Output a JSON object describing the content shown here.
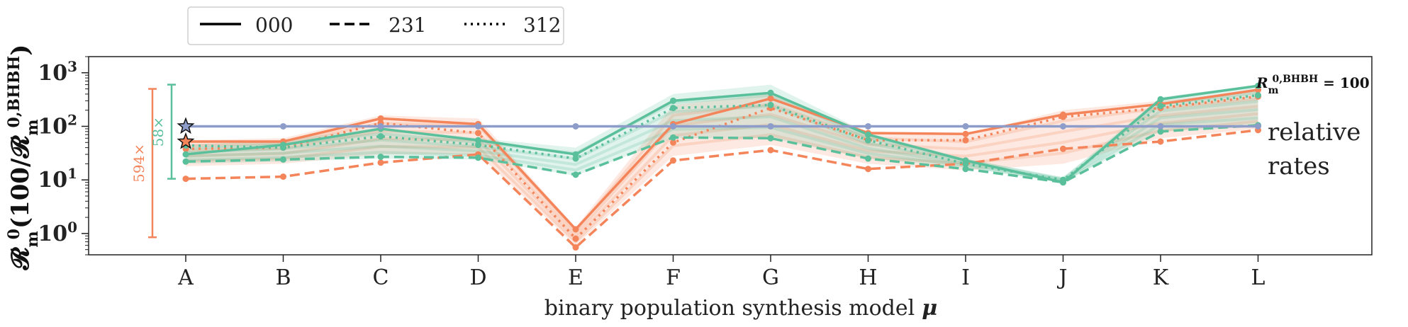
{
  "chart_data": {
    "type": "line",
    "xlabel_text": "binary population synthesis model",
    "xlabel_symbol": "μ",
    "ylabel_main": "𝓡",
    "ylabel_sub": "m",
    "ylabel_sup": "0",
    "ylabel_paren_open": "(100/",
    "ylabel_den": "𝓡",
    "ylabel_den_sub": "m",
    "ylabel_den_sup": "0,BHBH",
    "ylabel_paren_close": ")",
    "yscale": "log",
    "ylim": [
      0.4,
      2000
    ],
    "categories": [
      "A",
      "B",
      "C",
      "D",
      "E",
      "F",
      "G",
      "H",
      "I",
      "J",
      "K",
      "L"
    ],
    "yticks": [
      {
        "value": 1,
        "base": "10",
        "exp": "0"
      },
      {
        "value": 10,
        "base": "10",
        "exp": "1"
      },
      {
        "value": 100,
        "base": "10",
        "exp": "2"
      },
      {
        "value": 1000,
        "base": "10",
        "exp": "3"
      }
    ],
    "legend": [
      {
        "label": "000",
        "style": "solid"
      },
      {
        "label": "231",
        "style": "dashed"
      },
      {
        "label": "312",
        "style": "dotted"
      }
    ],
    "colors": {
      "orange": "#f4845a",
      "green": "#5abf9b",
      "blue": "#8d9cc9"
    },
    "series": [
      {
        "color": "orange",
        "style": "solid",
        "values": [
          52,
          52,
          140,
          110,
          1.2,
          110,
          330,
          75,
          72,
          165,
          260,
          480
        ]
      },
      {
        "color": "orange",
        "style": "dashed",
        "values": [
          10.5,
          11.5,
          21,
          30,
          0.55,
          23,
          36,
          16,
          20,
          38,
          52,
          85
        ]
      },
      {
        "color": "orange",
        "style": "dotted",
        "values": [
          38,
          40,
          115,
          75,
          0.8,
          50,
          220,
          55,
          55,
          150,
          220,
          360
        ]
      },
      {
        "color": "green",
        "style": "solid",
        "values": [
          30,
          45,
          90,
          55,
          30,
          300,
          420,
          70,
          23,
          9,
          320,
          570
        ]
      },
      {
        "color": "green",
        "style": "dashed",
        "values": [
          22,
          24,
          27,
          26,
          12.5,
          62,
          60,
          25,
          16,
          9,
          80,
          105
        ]
      },
      {
        "color": "green",
        "style": "dotted",
        "values": [
          44,
          40,
          65,
          45,
          25,
          220,
          250,
          55,
          20,
          10,
          240,
          380
        ]
      },
      {
        "color": "blue",
        "style": "solid",
        "values": [
          100,
          100,
          100,
          100,
          100,
          100,
          100,
          100,
          100,
          100,
          100,
          100
        ]
      }
    ],
    "faded_bands": {
      "orange": {
        "low": [
          18,
          20,
          30,
          30,
          0.6,
          28,
          45,
          20,
          15,
          20,
          60,
          90
        ],
        "high": [
          55,
          60,
          160,
          140,
          1.3,
          250,
          400,
          80,
          70,
          200,
          300,
          450
        ]
      },
      "green": {
        "low": [
          20,
          22,
          25,
          24,
          12,
          60,
          60,
          25,
          17,
          9,
          80,
          100
        ],
        "high": [
          45,
          55,
          95,
          60,
          40,
          400,
          600,
          75,
          25,
          11,
          350,
          600
        ]
      }
    },
    "error_bars": [
      {
        "label": "594×",
        "color": "orange",
        "low": 0.85,
        "high": 500
      },
      {
        "label": "58×",
        "color": "green",
        "low": 10.5,
        "high": 600
      }
    ],
    "star_markers": [
      {
        "color": "blue",
        "value": 100
      },
      {
        "color": "orange",
        "value": 52
      }
    ],
    "annotation_ref": {
      "symbol": "R",
      "sub": "m",
      "sup": "0,BHBH",
      "rest": " = 100"
    },
    "annotation_rel_1": "relative",
    "annotation_rel_2": "rates"
  }
}
